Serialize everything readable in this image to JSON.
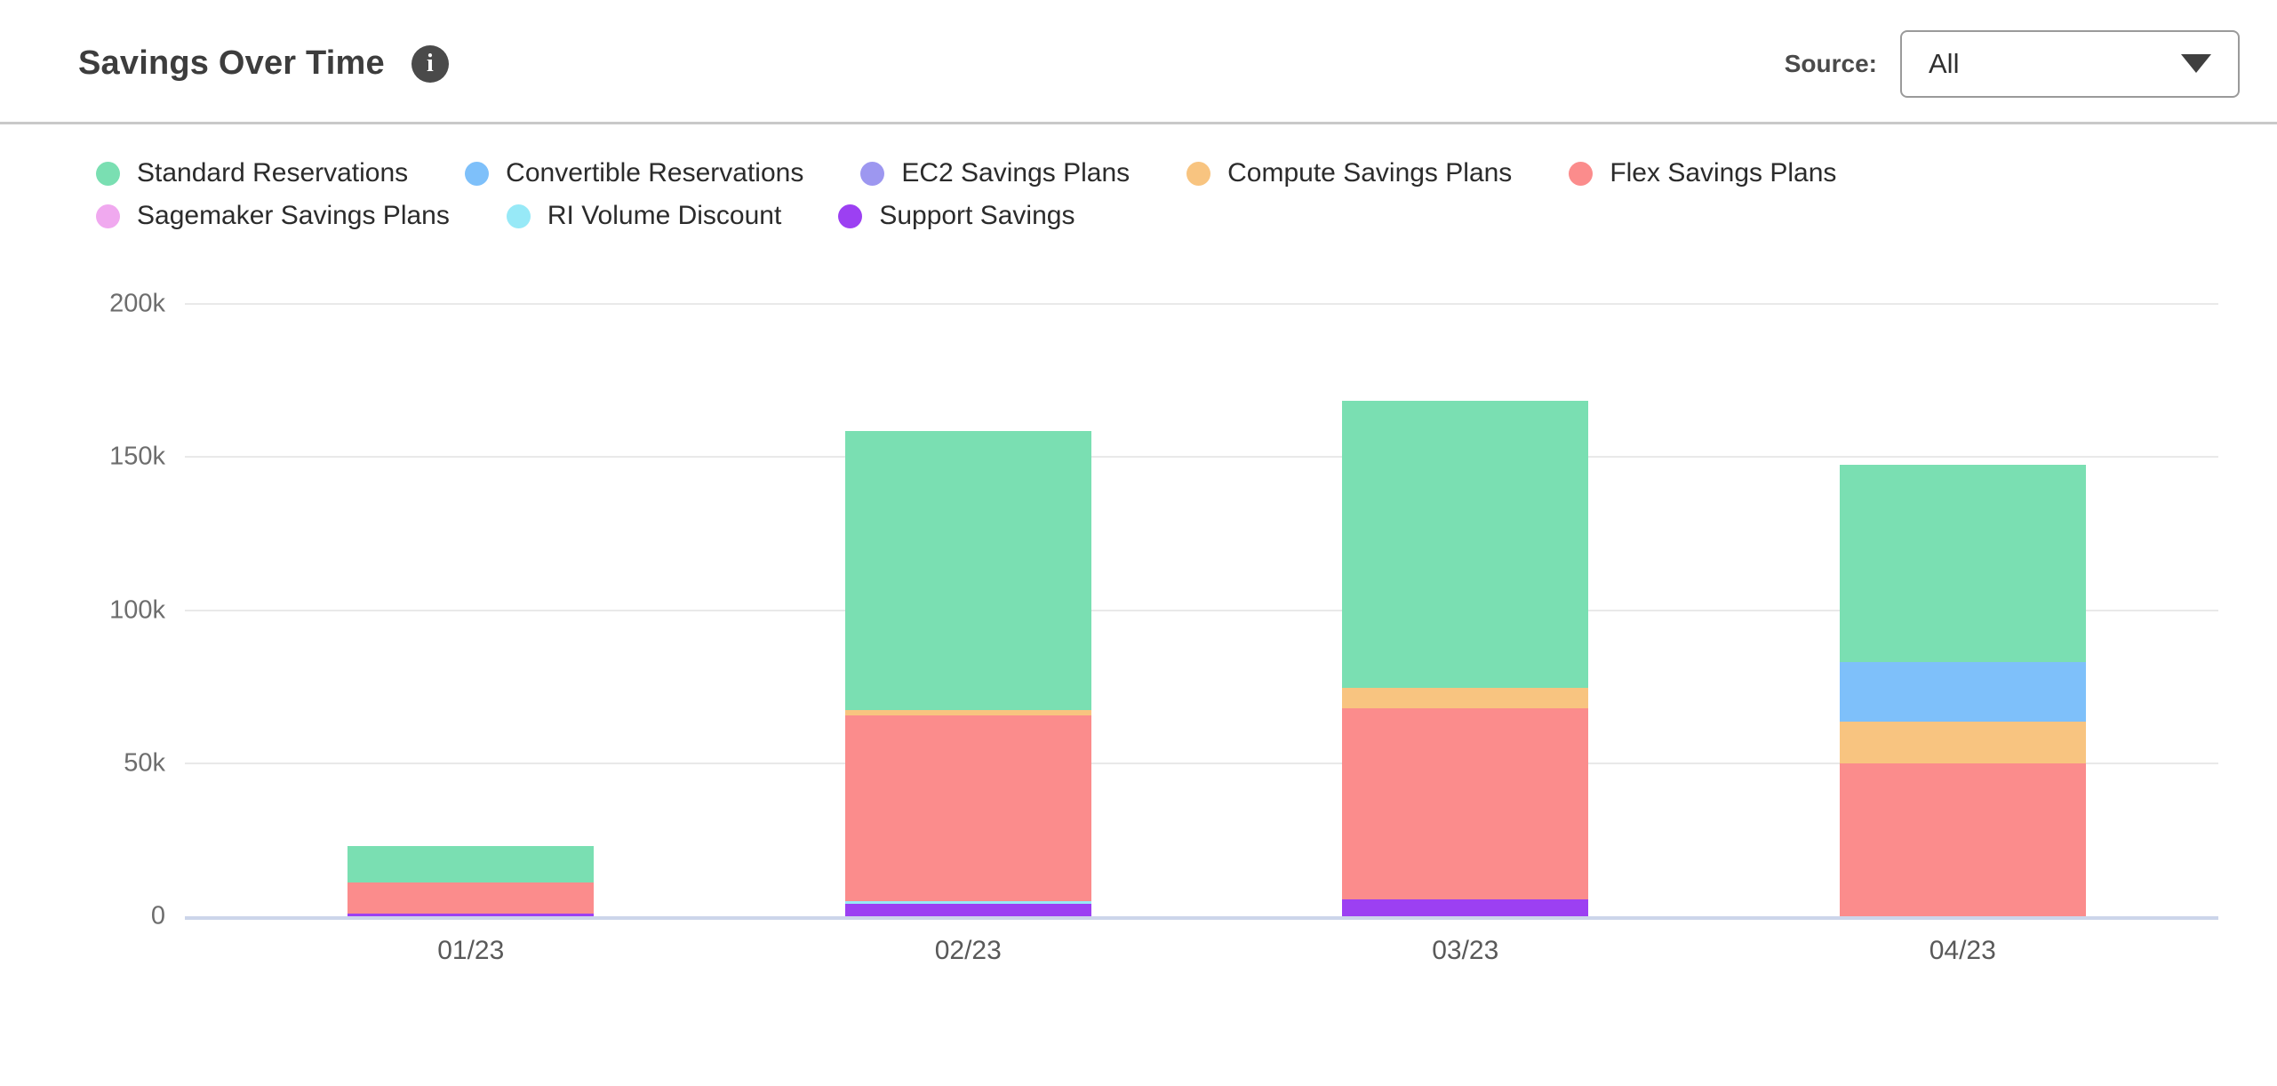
{
  "header": {
    "title": "Savings Over Time",
    "info_icon": "i",
    "source_label": "Source:",
    "source_value": "All"
  },
  "chart_data": {
    "type": "bar",
    "stacked": true,
    "title": "Savings Over Time",
    "value_unit": "k (thousands)",
    "categories": [
      "01/23",
      "02/23",
      "03/23",
      "04/23"
    ],
    "series": [
      {
        "name": "Standard Reservations",
        "color": "#7ADFB2",
        "values_k": [
          12,
          91,
          94,
          64.5
        ]
      },
      {
        "name": "Convertible Reservations",
        "color": "#7EC0FA",
        "values_k": [
          0,
          0,
          0,
          19.5
        ]
      },
      {
        "name": "EC2 Savings Plans",
        "color": "#9D97F0",
        "values_k": [
          0,
          0,
          0,
          0
        ]
      },
      {
        "name": "Compute Savings Plans",
        "color": "#F8C480",
        "values_k": [
          0,
          2,
          6.5,
          13.5
        ]
      },
      {
        "name": "Flex Savings Plans",
        "color": "#FB8C8C",
        "values_k": [
          10,
          60.5,
          62.5,
          50
        ]
      },
      {
        "name": "Sagemaker Savings Plans",
        "color": "#F0A9EF",
        "values_k": [
          0,
          0,
          0,
          0
        ]
      },
      {
        "name": "RI Volume Discount",
        "color": "#97E9F7",
        "values_k": [
          0,
          1,
          0,
          0
        ]
      },
      {
        "name": "Support Savings",
        "color": "#9C40F2",
        "values_k": [
          1,
          4,
          5.5,
          0
        ]
      }
    ],
    "totals_k": [
      23,
      158.5,
      168.5,
      147.5
    ],
    "stack_order": "bottom-to-top is reverse of series order",
    "y_ticks": [
      "200k",
      "150k",
      "100k",
      "50k",
      "0"
    ],
    "y_tick_values_k": [
      200,
      150,
      100,
      50,
      0
    ],
    "ylim_k": [
      0,
      200
    ],
    "grid": "horizontal",
    "legend_position": "top",
    "axis_line_color": "#ccd5ea",
    "gridline_color": "#e9e9e9"
  }
}
